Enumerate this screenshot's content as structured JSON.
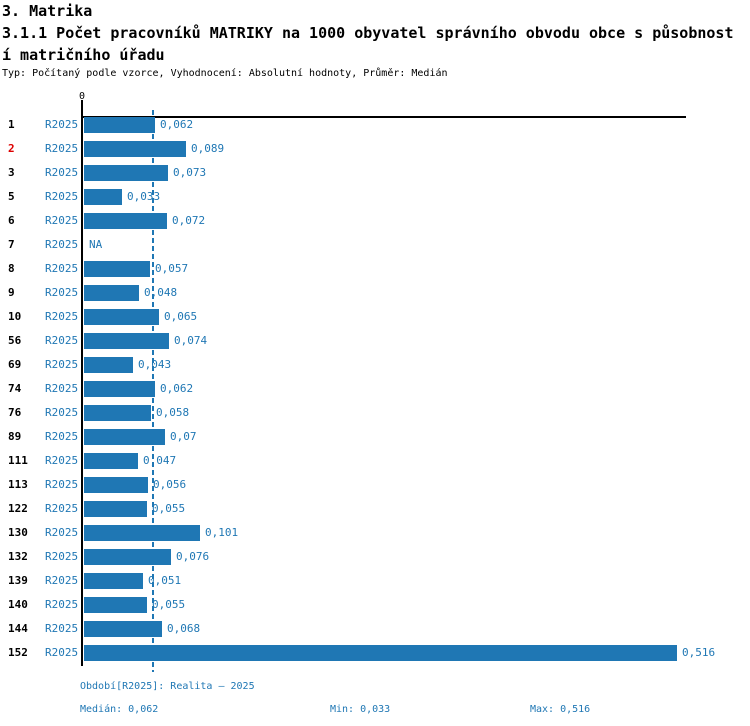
{
  "header": {
    "title": "3. Matrika",
    "subtitle_line1": "3.1.1 Počet pracovníků MATRIKY na 1000 obyvatel správního obvodu obce s působnost",
    "subtitle_line2": "í matričního úřadu",
    "meta": "Typ: Počítaný podle vzorce, Vyhodnocení: Absolutní hodnoty, Průměr: Medián"
  },
  "chart_data": {
    "type": "bar",
    "orientation": "horizontal",
    "title": "3.1.1 Počet pracovníků MATRIKY na 1000 obyvatel správního obvodu obce s působností matričního úřadu",
    "xlabel": "",
    "ylabel": "",
    "x_axis": {
      "zero_tick_label": "0",
      "min": 0,
      "max_drawn": 0.516,
      "grid": false
    },
    "legend_position": "none",
    "median_line_value": 0.062,
    "stats": {
      "median": 0.062,
      "min": 0.033,
      "max": 0.516
    },
    "series_period": "R2025",
    "categories": [
      "1",
      "2",
      "3",
      "5",
      "6",
      "7",
      "8",
      "9",
      "10",
      "56",
      "69",
      "74",
      "76",
      "89",
      "111",
      "113",
      "122",
      "130",
      "132",
      "139",
      "140",
      "144",
      "152"
    ],
    "values": [
      0.062,
      0.089,
      0.073,
      0.033,
      0.072,
      null,
      0.057,
      0.048,
      0.065,
      0.074,
      0.043,
      0.062,
      0.058,
      0.07,
      0.047,
      0.056,
      0.055,
      0.101,
      0.076,
      0.051,
      0.055,
      0.068,
      0.516
    ],
    "rows": [
      {
        "category": "1",
        "period": "R2025",
        "value": 0.062,
        "label": "0,062",
        "highlighted": false
      },
      {
        "category": "2",
        "period": "R2025",
        "value": 0.089,
        "label": "0,089",
        "highlighted": true
      },
      {
        "category": "3",
        "period": "R2025",
        "value": 0.073,
        "label": "0,073",
        "highlighted": false
      },
      {
        "category": "5",
        "period": "R2025",
        "value": 0.033,
        "label": "0,033",
        "highlighted": false
      },
      {
        "category": "6",
        "period": "R2025",
        "value": 0.072,
        "label": "0,072",
        "highlighted": false
      },
      {
        "category": "7",
        "period": "R2025",
        "value": null,
        "label": "NA",
        "highlighted": false
      },
      {
        "category": "8",
        "period": "R2025",
        "value": 0.057,
        "label": "0,057",
        "highlighted": false
      },
      {
        "category": "9",
        "period": "R2025",
        "value": 0.048,
        "label": "0,048",
        "highlighted": false
      },
      {
        "category": "10",
        "period": "R2025",
        "value": 0.065,
        "label": "0,065",
        "highlighted": false
      },
      {
        "category": "56",
        "period": "R2025",
        "value": 0.074,
        "label": "0,074",
        "highlighted": false
      },
      {
        "category": "69",
        "period": "R2025",
        "value": 0.043,
        "label": "0,043",
        "highlighted": false
      },
      {
        "category": "74",
        "period": "R2025",
        "value": 0.062,
        "label": "0,062",
        "highlighted": false
      },
      {
        "category": "76",
        "period": "R2025",
        "value": 0.058,
        "label": "0,058",
        "highlighted": false
      },
      {
        "category": "89",
        "period": "R2025",
        "value": 0.07,
        "label": "0,07",
        "highlighted": false
      },
      {
        "category": "111",
        "period": "R2025",
        "value": 0.047,
        "label": "0,047",
        "highlighted": false
      },
      {
        "category": "113",
        "period": "R2025",
        "value": 0.056,
        "label": "0,056",
        "highlighted": false
      },
      {
        "category": "122",
        "period": "R2025",
        "value": 0.055,
        "label": "0,055",
        "highlighted": false
      },
      {
        "category": "130",
        "period": "R2025",
        "value": 0.101,
        "label": "0,101",
        "highlighted": false
      },
      {
        "category": "132",
        "period": "R2025",
        "value": 0.076,
        "label": "0,076",
        "highlighted": false
      },
      {
        "category": "139",
        "period": "R2025",
        "value": 0.051,
        "label": "0,051",
        "highlighted": false
      },
      {
        "category": "140",
        "period": "R2025",
        "value": 0.055,
        "label": "0,055",
        "highlighted": false
      },
      {
        "category": "144",
        "period": "R2025",
        "value": 0.068,
        "label": "0,068",
        "highlighted": false
      },
      {
        "category": "152",
        "period": "R2025",
        "value": 0.516,
        "label": "0,516",
        "highlighted": false
      }
    ]
  },
  "footer": {
    "period": "Období[R2025]: Realita – 2025",
    "median": "Medián: 0,062",
    "min": "Min: 0,033",
    "max": "Max: 0,516"
  },
  "colors": {
    "accent": "#1f77b4",
    "highlight": "#dd0000",
    "axis": "#000000"
  }
}
